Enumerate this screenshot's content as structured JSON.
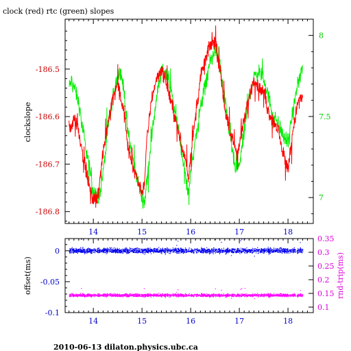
{
  "title": "clock (red) rtc (green) slopes",
  "footer": "2010-06-13  dilaton.physics.ubc.ca",
  "chart_data": [
    {
      "type": "line",
      "title": "clock (red) rtc (green) slopes",
      "xlabel": "",
      "ylabel": "clockslope",
      "xlim": [
        13.42,
        18.52
      ],
      "ylim": [
        -186.825,
        -186.395
      ],
      "xticks": [
        14,
        15,
        16,
        17,
        18
      ],
      "xtick_labels": [
        "14",
        "15",
        "16",
        "17",
        "18"
      ],
      "yticks": [
        -186.8,
        -186.7,
        -186.6,
        -186.5
      ],
      "ytick_labels": [
        "-186.8",
        "-186.7",
        "-186.6",
        "-186.5"
      ],
      "y2lim": [
        6.84,
        8.1
      ],
      "y2ticks": [
        7,
        7.5,
        8
      ],
      "y2tick_labels": [
        "7",
        "7.5",
        "8"
      ],
      "y2label": "",
      "colors": {
        "clock": "#ff0000",
        "rtc": "#00ee00",
        "axis_left": "#cc0000",
        "axis_right": "#00cc00"
      },
      "series": [
        {
          "axis": "left",
          "color": "#ff0000",
          "x": [
            13.5,
            13.55,
            13.6,
            13.7,
            13.8,
            13.9,
            14.0,
            14.1,
            14.2,
            14.3,
            14.4,
            14.5,
            14.55,
            14.6,
            14.65,
            14.7,
            14.8,
            14.9,
            15.0,
            15.05,
            15.1,
            15.2,
            15.3,
            15.4,
            15.5,
            15.6,
            15.7,
            15.8,
            15.9,
            15.95,
            16.0,
            16.1,
            16.2,
            16.3,
            16.4,
            16.5,
            16.6,
            16.7,
            16.8,
            16.9,
            16.95,
            17.0,
            17.1,
            17.2,
            17.3,
            17.4,
            17.5,
            17.6,
            17.7,
            17.8,
            17.9,
            18.0,
            18.1,
            18.2,
            18.3
          ],
          "y": [
            -186.63,
            -186.62,
            -186.6,
            -186.63,
            -186.69,
            -186.74,
            -186.78,
            -186.76,
            -186.68,
            -186.61,
            -186.56,
            -186.53,
            -186.55,
            -186.58,
            -186.6,
            -186.66,
            -186.7,
            -186.73,
            -186.76,
            -186.74,
            -186.65,
            -186.56,
            -186.52,
            -186.5,
            -186.53,
            -186.57,
            -186.61,
            -186.66,
            -186.69,
            -186.73,
            -186.68,
            -186.6,
            -186.52,
            -186.48,
            -186.45,
            -186.44,
            -186.5,
            -186.58,
            -186.63,
            -186.66,
            -186.68,
            -186.66,
            -186.61,
            -186.56,
            -186.52,
            -186.54,
            -186.55,
            -186.59,
            -186.61,
            -186.63,
            -186.68,
            -186.71,
            -186.63,
            -186.57,
            -186.56
          ]
        },
        {
          "axis": "right",
          "color": "#00ee00",
          "x": [
            13.5,
            13.55,
            13.6,
            13.7,
            13.8,
            13.9,
            14.0,
            14.1,
            14.2,
            14.3,
            14.4,
            14.5,
            14.55,
            14.6,
            14.65,
            14.7,
            14.8,
            14.9,
            15.0,
            15.05,
            15.1,
            15.2,
            15.3,
            15.4,
            15.5,
            15.6,
            15.7,
            15.8,
            15.9,
            15.95,
            16.0,
            16.1,
            16.2,
            16.3,
            16.4,
            16.5,
            16.6,
            16.7,
            16.8,
            16.9,
            16.95,
            17.0,
            17.1,
            17.2,
            17.3,
            17.4,
            17.5,
            17.6,
            17.7,
            17.8,
            17.9,
            18.0,
            18.1,
            18.2,
            18.3
          ],
          "y": [
            7.68,
            7.72,
            7.69,
            7.58,
            7.38,
            7.22,
            7.04,
            6.98,
            7.15,
            7.42,
            7.63,
            7.76,
            7.78,
            7.72,
            7.6,
            7.42,
            7.25,
            7.12,
            7.0,
            6.97,
            7.1,
            7.38,
            7.62,
            7.78,
            7.78,
            7.65,
            7.5,
            7.32,
            7.12,
            7.02,
            7.16,
            7.36,
            7.55,
            7.7,
            7.83,
            7.92,
            7.82,
            7.6,
            7.4,
            7.2,
            7.16,
            7.2,
            7.4,
            7.62,
            7.74,
            7.78,
            7.73,
            7.62,
            7.5,
            7.46,
            7.38,
            7.34,
            7.52,
            7.7,
            7.8
          ]
        }
      ]
    },
    {
      "type": "scatter",
      "xlabel": "",
      "ylabel": "offset(ms)",
      "xlim": [
        13.42,
        18.52
      ],
      "ylim": [
        -0.1,
        0.0197
      ],
      "xticks": [
        14,
        15,
        16,
        17,
        18
      ],
      "xtick_labels": [
        "14",
        "15",
        "16",
        "17",
        "18"
      ],
      "yticks": [
        -0.1,
        -0.05,
        0
      ],
      "ytick_labels": [
        "-0.1",
        "-0.05",
        "0"
      ],
      "y2label": "rnd-trip(ms)",
      "y2lim": [
        0.08,
        0.35
      ],
      "y2ticks": [
        0.1,
        0.15,
        0.2,
        0.25,
        0.3,
        0.35
      ],
      "y2tick_labels": [
        "0.1",
        "0.15",
        "0.2",
        "0.25",
        "0.3",
        "0.35"
      ],
      "colors": {
        "offset": "#0000ee",
        "rnd_trip": "#ff00ff",
        "axis_left": "#0000cc",
        "axis_right": "#dd00dd"
      },
      "series": [
        {
          "axis": "left",
          "color": "#0000ee",
          "x_range": [
            13.5,
            18.3
          ],
          "y_mean": 0.0,
          "y_spread": 0.006
        },
        {
          "axis": "right",
          "color": "#ff00ff",
          "x_range": [
            13.5,
            18.3
          ],
          "y_mean": 0.143,
          "y_spread": 0.008
        }
      ]
    }
  ]
}
